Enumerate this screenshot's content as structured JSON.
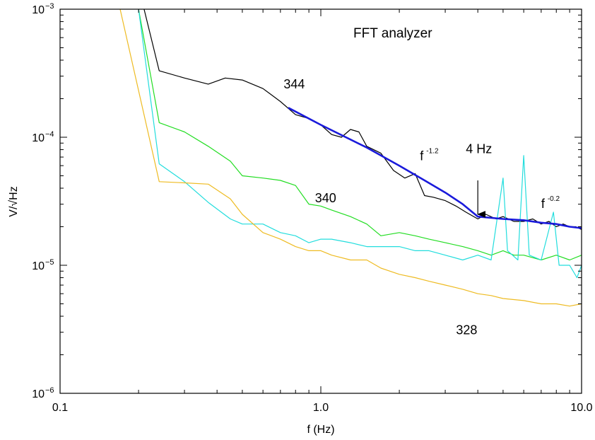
{
  "chart_data": {
    "type": "line",
    "title": "FFT analyzer",
    "xlabel": "f (Hz)",
    "ylabel": "V/√Hz",
    "xscale": "log",
    "yscale": "log",
    "xlim": [
      0.1,
      10.0
    ],
    "ylim": [
      1e-06,
      0.001
    ],
    "grid": false,
    "x_ticks": [
      {
        "value": 0.1,
        "label": "0.1"
      },
      {
        "value": 1.0,
        "label": "1.0"
      },
      {
        "value": 10.0,
        "label": "10.0"
      }
    ],
    "y_ticks": [
      {
        "value": 1e-06,
        "base": "10",
        "exp": "−6"
      },
      {
        "value": 1e-05,
        "base": "10",
        "exp": "−5"
      },
      {
        "value": 0.0001,
        "base": "10",
        "exp": "−4"
      },
      {
        "value": 0.001,
        "base": "10",
        "exp": "−3"
      }
    ],
    "series": [
      {
        "name": "344",
        "color": "#000000",
        "points": [
          [
            0.21,
            0.001
          ],
          [
            0.24,
            0.00033
          ],
          [
            0.3,
            0.00029
          ],
          [
            0.37,
            0.00026
          ],
          [
            0.43,
            0.00029
          ],
          [
            0.5,
            0.00028
          ],
          [
            0.6,
            0.00024
          ],
          [
            0.7,
            0.00019
          ],
          [
            0.8,
            0.00015
          ],
          [
            0.9,
            0.00014
          ],
          [
            1.0,
            0.000125
          ],
          [
            1.1,
            0.000105
          ],
          [
            1.2,
            0.0001
          ],
          [
            1.3,
            0.000115
          ],
          [
            1.4,
            0.00011
          ],
          [
            1.5,
            8.5e-05
          ],
          [
            1.7,
            7.5e-05
          ],
          [
            1.9,
            5.5e-05
          ],
          [
            2.1,
            4.8e-05
          ],
          [
            2.3,
            5.2e-05
          ],
          [
            2.5,
            3.5e-05
          ],
          [
            2.7,
            3.4e-05
          ],
          [
            3.0,
            3.2e-05
          ],
          [
            3.3,
            2.9e-05
          ],
          [
            3.6,
            2.6e-05
          ],
          [
            4.0,
            2.3e-05
          ],
          [
            4.3,
            2.5e-05
          ],
          [
            4.7,
            2.3e-05
          ],
          [
            5.0,
            2.4e-05
          ],
          [
            5.5,
            2.2e-05
          ],
          [
            6.0,
            2.2e-05
          ],
          [
            6.5,
            2.3e-05
          ],
          [
            7.0,
            2.1e-05
          ],
          [
            7.5,
            2.2e-05
          ],
          [
            8.0,
            2e-05
          ],
          [
            8.5,
            2.1e-05
          ],
          [
            9.0,
            2e-05
          ],
          [
            9.5,
            2e-05
          ],
          [
            10.0,
            1.9e-05
          ]
        ]
      },
      {
        "name": "340",
        "color": "#22dd22",
        "points": [
          [
            0.2,
            0.001
          ],
          [
            0.24,
            0.00013
          ],
          [
            0.3,
            0.00011
          ],
          [
            0.37,
            8.5e-05
          ],
          [
            0.45,
            6.5e-05
          ],
          [
            0.5,
            5e-05
          ],
          [
            0.6,
            4.8e-05
          ],
          [
            0.7,
            4.6e-05
          ],
          [
            0.8,
            4.2e-05
          ],
          [
            0.9,
            3e-05
          ],
          [
            1.0,
            2.9e-05
          ],
          [
            1.1,
            2.7e-05
          ],
          [
            1.3,
            2.4e-05
          ],
          [
            1.5,
            2.1e-05
          ],
          [
            1.7,
            1.7e-05
          ],
          [
            2.0,
            1.8e-05
          ],
          [
            2.3,
            1.7e-05
          ],
          [
            2.6,
            1.6e-05
          ],
          [
            3.0,
            1.5e-05
          ],
          [
            3.5,
            1.4e-05
          ],
          [
            4.0,
            1.3e-05
          ],
          [
            4.5,
            1.2e-05
          ],
          [
            5.0,
            1.3e-05
          ],
          [
            5.5,
            1.2e-05
          ],
          [
            6.0,
            1.2e-05
          ],
          [
            7.0,
            1.1e-05
          ],
          [
            8.0,
            1.2e-05
          ],
          [
            9.0,
            1.1e-05
          ],
          [
            10.0,
            1.2e-05
          ]
        ]
      },
      {
        "name": "",
        "color": "#22dddd",
        "points": [
          [
            0.2,
            0.001
          ],
          [
            0.24,
            6.2e-05
          ],
          [
            0.3,
            4.5e-05
          ],
          [
            0.37,
            3.1e-05
          ],
          [
            0.45,
            2.3e-05
          ],
          [
            0.5,
            2.1e-05
          ],
          [
            0.6,
            2.1e-05
          ],
          [
            0.7,
            1.8e-05
          ],
          [
            0.8,
            1.7e-05
          ],
          [
            0.9,
            1.5e-05
          ],
          [
            1.0,
            1.6e-05
          ],
          [
            1.1,
            1.6e-05
          ],
          [
            1.3,
            1.5e-05
          ],
          [
            1.5,
            1.4e-05
          ],
          [
            1.7,
            1.4e-05
          ],
          [
            2.0,
            1.4e-05
          ],
          [
            2.3,
            1.3e-05
          ],
          [
            2.6,
            1.3e-05
          ],
          [
            3.0,
            1.2e-05
          ],
          [
            3.5,
            1.1e-05
          ],
          [
            4.0,
            1.2e-05
          ],
          [
            4.5,
            1.1e-05
          ],
          [
            5.0,
            4.8e-05
          ],
          [
            5.2,
            1.3e-05
          ],
          [
            5.7,
            1.1e-05
          ],
          [
            6.0,
            7.2e-05
          ],
          [
            6.3,
            1.2e-05
          ],
          [
            7.0,
            1.1e-05
          ],
          [
            7.8,
            2.6e-05
          ],
          [
            8.2,
            1e-05
          ],
          [
            9.0,
            1e-05
          ],
          [
            9.6,
            8e-06
          ],
          [
            10.0,
            1e-05
          ]
        ]
      },
      {
        "name": "328",
        "color": "#eebb22",
        "points": [
          [
            0.17,
            0.001
          ],
          [
            0.24,
            4.5e-05
          ],
          [
            0.3,
            4.4e-05
          ],
          [
            0.37,
            4.3e-05
          ],
          [
            0.45,
            3.3e-05
          ],
          [
            0.5,
            2.5e-05
          ],
          [
            0.6,
            1.8e-05
          ],
          [
            0.7,
            1.6e-05
          ],
          [
            0.8,
            1.4e-05
          ],
          [
            0.9,
            1.3e-05
          ],
          [
            1.0,
            1.3e-05
          ],
          [
            1.1,
            1.2e-05
          ],
          [
            1.3,
            1.1e-05
          ],
          [
            1.5,
            1.1e-05
          ],
          [
            1.7,
            9.5e-06
          ],
          [
            2.0,
            8.5e-06
          ],
          [
            2.3,
            8e-06
          ],
          [
            2.6,
            7.5e-06
          ],
          [
            3.0,
            7e-06
          ],
          [
            3.5,
            6.5e-06
          ],
          [
            4.0,
            6e-06
          ],
          [
            4.5,
            5.8e-06
          ],
          [
            5.0,
            5.5e-06
          ],
          [
            6.0,
            5.3e-06
          ],
          [
            7.0,
            5e-06
          ],
          [
            8.0,
            5e-06
          ],
          [
            9.0,
            4.8e-06
          ],
          [
            10.0,
            5e-06
          ]
        ]
      },
      {
        "name": "",
        "color": "#1a1adb",
        "points": [
          [
            0.75,
            0.00017
          ],
          [
            1.0,
            0.000125
          ],
          [
            1.5,
            8.3e-05
          ],
          [
            2.0,
            6e-05
          ],
          [
            2.5,
            4.6e-05
          ],
          [
            3.0,
            3.7e-05
          ],
          [
            3.5,
            3e-05
          ],
          [
            4.0,
            2.4e-05
          ],
          [
            5.0,
            2.3e-05
          ],
          [
            6.0,
            2.25e-05
          ],
          [
            7.0,
            2.15e-05
          ],
          [
            8.0,
            2.1e-05
          ],
          [
            9.0,
            2e-05
          ],
          [
            10.0,
            1.95e-05
          ]
        ]
      }
    ],
    "annotations": [
      {
        "text": "344",
        "x": 0.72,
        "y": 0.00024
      },
      {
        "text": "340",
        "x": 0.95,
        "y": 3.1e-05
      },
      {
        "text": "328",
        "x": 3.3,
        "y": 2.9e-06
      },
      {
        "text": "f",
        "exp": "-1.2",
        "x": 2.4,
        "y": 6.6e-05
      },
      {
        "text": "4 Hz",
        "x": 3.6,
        "y": 7.5e-05
      },
      {
        "text": "f",
        "exp": "-0.2",
        "x": 7.0,
        "y": 2.8e-05
      }
    ],
    "arrow": {
      "x": 4.0,
      "y_from": 4.6e-05,
      "y_to": 2.5e-05
    }
  }
}
